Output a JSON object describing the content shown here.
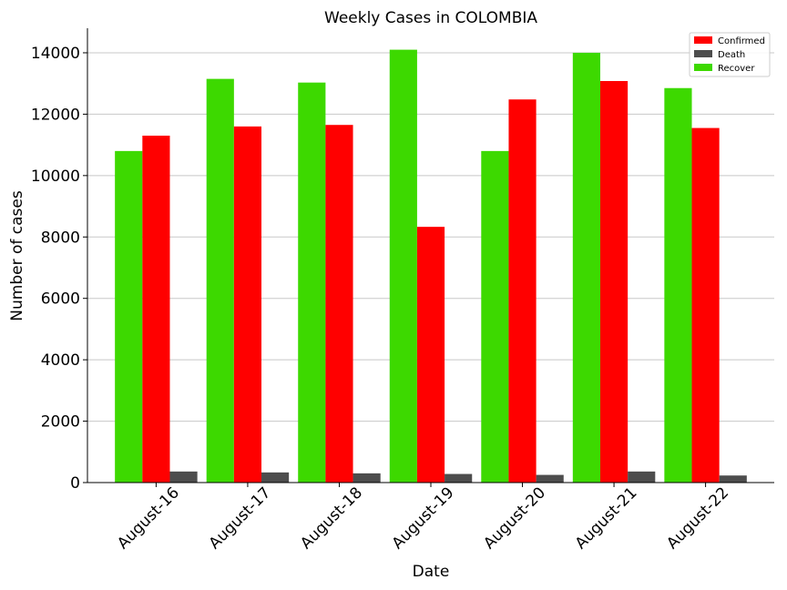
{
  "chart_data": {
    "type": "bar",
    "title": "Weekly Cases in COLOMBIA",
    "xlabel": "Date",
    "ylabel": "Number of cases",
    "categories": [
      "August-16",
      "August-17",
      "August-18",
      "August-19",
      "August-20",
      "August-21",
      "August-22"
    ],
    "series": [
      {
        "name": "Recover",
        "color": "#3dd900",
        "values": [
          10800,
          13150,
          13030,
          14100,
          10800,
          14000,
          12850
        ]
      },
      {
        "name": "Confirmed",
        "color": "#ff0000",
        "values": [
          11300,
          11600,
          11650,
          8330,
          12480,
          13080,
          11550
        ]
      },
      {
        "name": "Death",
        "color": "#4d4d4d",
        "values": [
          360,
          330,
          300,
          280,
          250,
          360,
          230
        ]
      }
    ],
    "legend_order": [
      "Confirmed",
      "Death",
      "Recover"
    ],
    "legend_position": "top-right",
    "ylim": [
      0,
      14800
    ],
    "yticks": [
      0,
      2000,
      4000,
      6000,
      8000,
      10000,
      12000,
      14000
    ],
    "grid": "horizontal"
  }
}
